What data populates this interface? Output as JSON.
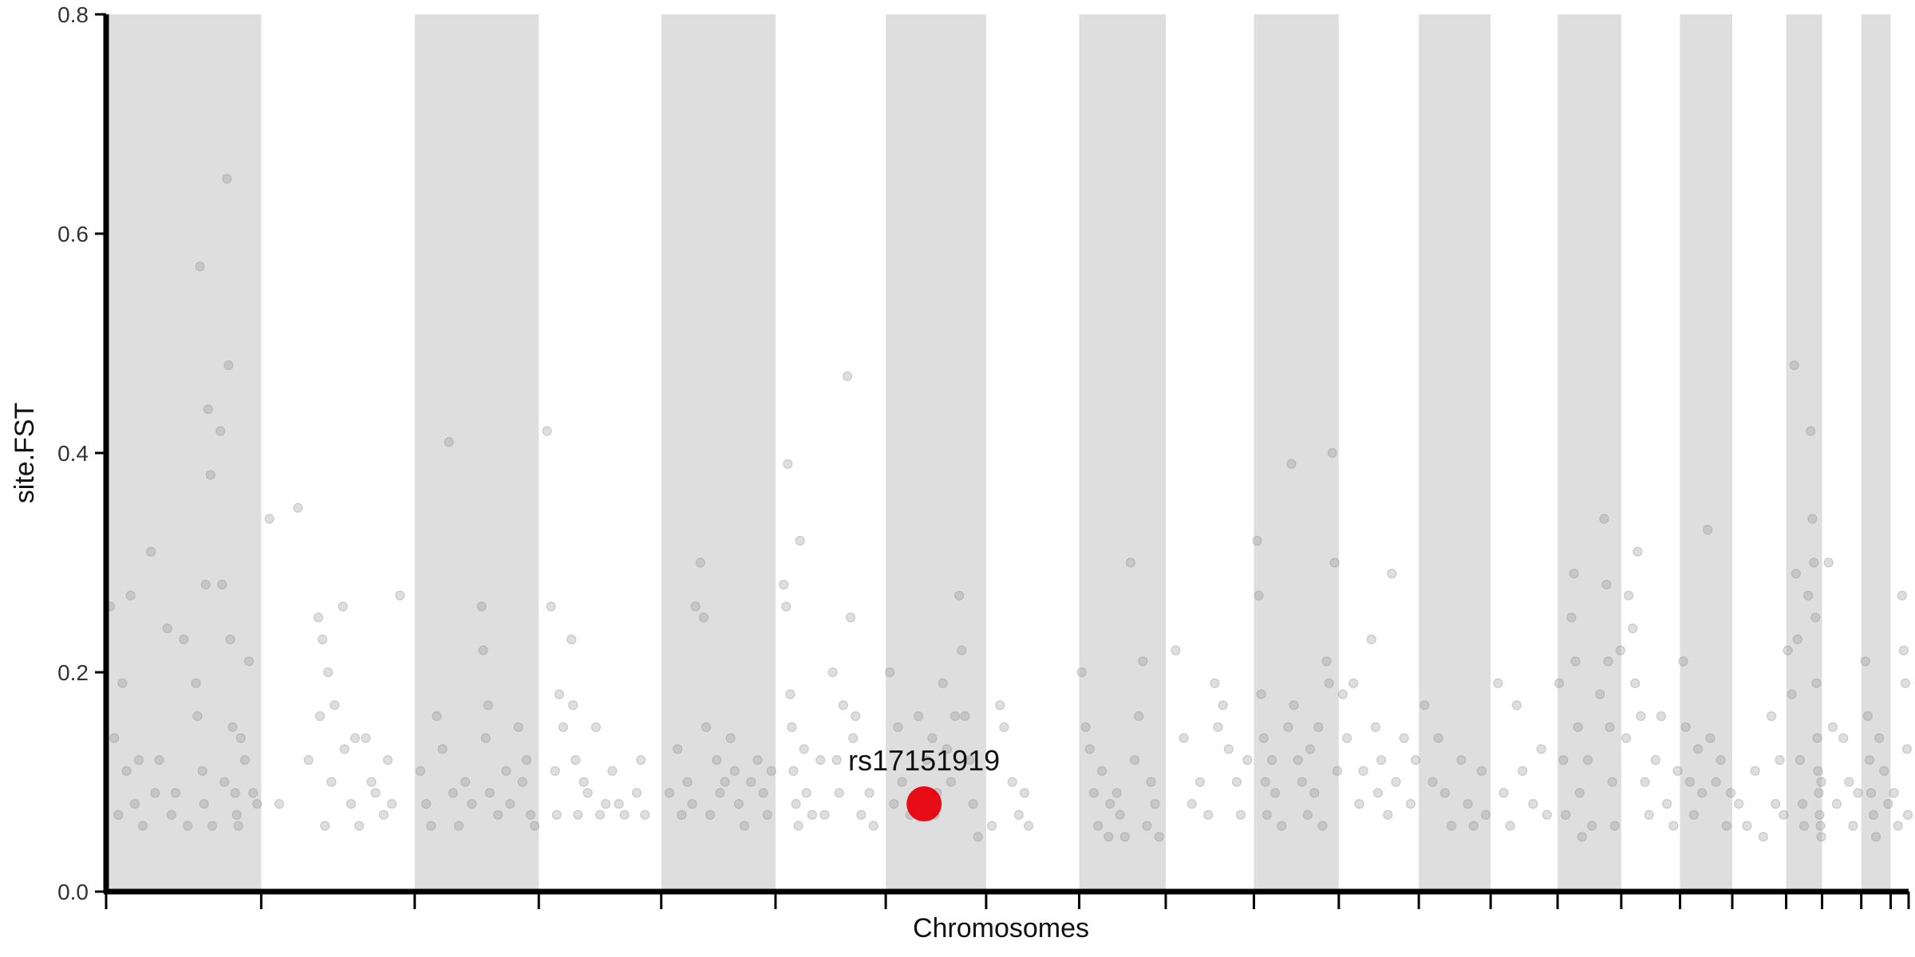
{
  "chart_data": {
    "type": "scatter",
    "ylabel": "site.FST",
    "xlabel": "Chromosomes",
    "ylim": [
      0,
      0.8
    ],
    "yticks": [
      0.0,
      0.2,
      0.4,
      0.6,
      0.8
    ],
    "ytick_labels": [
      "0.0",
      "0.2",
      "0.4",
      "0.6",
      "0.8"
    ],
    "chromosome_bands": [
      {
        "start": 0,
        "end": 190,
        "shaded": true
      },
      {
        "start": 190,
        "end": 378,
        "shaded": false
      },
      {
        "start": 378,
        "end": 530,
        "shaded": true
      },
      {
        "start": 530,
        "end": 680,
        "shaded": false
      },
      {
        "start": 680,
        "end": 820,
        "shaded": true
      },
      {
        "start": 820,
        "end": 955,
        "shaded": false
      },
      {
        "start": 955,
        "end": 1078,
        "shaded": true
      },
      {
        "start": 1078,
        "end": 1192,
        "shaded": false
      },
      {
        "start": 1192,
        "end": 1298,
        "shaded": true
      },
      {
        "start": 1298,
        "end": 1406,
        "shaded": false
      },
      {
        "start": 1406,
        "end": 1510,
        "shaded": true
      },
      {
        "start": 1510,
        "end": 1608,
        "shaded": false
      },
      {
        "start": 1608,
        "end": 1696,
        "shaded": true
      },
      {
        "start": 1696,
        "end": 1778,
        "shaded": false
      },
      {
        "start": 1778,
        "end": 1856,
        "shaded": true
      },
      {
        "start": 1856,
        "end": 1928,
        "shaded": false
      },
      {
        "start": 1928,
        "end": 1992,
        "shaded": true
      },
      {
        "start": 1992,
        "end": 2058,
        "shaded": false
      },
      {
        "start": 2058,
        "end": 2102,
        "shaded": true
      },
      {
        "start": 2102,
        "end": 2150,
        "shaded": false
      },
      {
        "start": 2150,
        "end": 2186,
        "shaded": true
      },
      {
        "start": 2186,
        "end": 2208,
        "shaded": false
      }
    ],
    "x_range": [
      0,
      2208
    ],
    "colors": {
      "band": "#dedede",
      "point": "#8a8a8a",
      "highlight": "#e8000b",
      "axis": "#000000"
    },
    "highlight": {
      "label": "rs17151919",
      "x": 1002,
      "y": 0.08
    },
    "points": [
      [
        5,
        0.26
      ],
      [
        10,
        0.14
      ],
      [
        15,
        0.07
      ],
      [
        20,
        0.19
      ],
      [
        25,
        0.11
      ],
      [
        30,
        0.27
      ],
      [
        35,
        0.08
      ],
      [
        40,
        0.12
      ],
      [
        45,
        0.06
      ],
      [
        55,
        0.31
      ],
      [
        60,
        0.09
      ],
      [
        65,
        0.12
      ],
      [
        75,
        0.24
      ],
      [
        80,
        0.07
      ],
      [
        85,
        0.09
      ],
      [
        95,
        0.23
      ],
      [
        100,
        0.06
      ],
      [
        110,
        0.19
      ],
      [
        112,
        0.16
      ],
      [
        115,
        0.57
      ],
      [
        118,
        0.11
      ],
      [
        120,
        0.08
      ],
      [
        122,
        0.28
      ],
      [
        125,
        0.44
      ],
      [
        128,
        0.38
      ],
      [
        130,
        0.06
      ],
      [
        140,
        0.42
      ],
      [
        142,
        0.28
      ],
      [
        145,
        0.1
      ],
      [
        148,
        0.65
      ],
      [
        150,
        0.48
      ],
      [
        152,
        0.23
      ],
      [
        155,
        0.15
      ],
      [
        158,
        0.09
      ],
      [
        160,
        0.07
      ],
      [
        162,
        0.06
      ],
      [
        165,
        0.14
      ],
      [
        170,
        0.12
      ],
      [
        175,
        0.21
      ],
      [
        180,
        0.09
      ],
      [
        185,
        0.08
      ],
      [
        200,
        0.34
      ],
      [
        212,
        0.08
      ],
      [
        235,
        0.35
      ],
      [
        248,
        0.12
      ],
      [
        260,
        0.25
      ],
      [
        262,
        0.16
      ],
      [
        265,
        0.23
      ],
      [
        268,
        0.06
      ],
      [
        272,
        0.2
      ],
      [
        276,
        0.1
      ],
      [
        280,
        0.17
      ],
      [
        290,
        0.26
      ],
      [
        292,
        0.13
      ],
      [
        300,
        0.08
      ],
      [
        305,
        0.14
      ],
      [
        310,
        0.06
      ],
      [
        318,
        0.14
      ],
      [
        325,
        0.1
      ],
      [
        330,
        0.09
      ],
      [
        340,
        0.07
      ],
      [
        345,
        0.12
      ],
      [
        350,
        0.08
      ],
      [
        360,
        0.27
      ],
      [
        385,
        0.11
      ],
      [
        392,
        0.08
      ],
      [
        398,
        0.06
      ],
      [
        405,
        0.16
      ],
      [
        412,
        0.13
      ],
      [
        420,
        0.41
      ],
      [
        425,
        0.09
      ],
      [
        432,
        0.06
      ],
      [
        440,
        0.1
      ],
      [
        448,
        0.08
      ],
      [
        460,
        0.26
      ],
      [
        462,
        0.22
      ],
      [
        465,
        0.14
      ],
      [
        468,
        0.17
      ],
      [
        470,
        0.09
      ],
      [
        480,
        0.07
      ],
      [
        490,
        0.11
      ],
      [
        495,
        0.08
      ],
      [
        505,
        0.15
      ],
      [
        510,
        0.1
      ],
      [
        515,
        0.12
      ],
      [
        520,
        0.07
      ],
      [
        525,
        0.06
      ],
      [
        540,
        0.42
      ],
      [
        545,
        0.26
      ],
      [
        550,
        0.11
      ],
      [
        552,
        0.07
      ],
      [
        555,
        0.18
      ],
      [
        560,
        0.15
      ],
      [
        570,
        0.23
      ],
      [
        572,
        0.17
      ],
      [
        575,
        0.12
      ],
      [
        578,
        0.07
      ],
      [
        585,
        0.1
      ],
      [
        590,
        0.09
      ],
      [
        600,
        0.15
      ],
      [
        605,
        0.07
      ],
      [
        612,
        0.08
      ],
      [
        620,
        0.11
      ],
      [
        628,
        0.08
      ],
      [
        635,
        0.07
      ],
      [
        650,
        0.09
      ],
      [
        655,
        0.12
      ],
      [
        660,
        0.07
      ],
      [
        690,
        0.09
      ],
      [
        700,
        0.13
      ],
      [
        705,
        0.07
      ],
      [
        712,
        0.1
      ],
      [
        718,
        0.08
      ],
      [
        722,
        0.26
      ],
      [
        728,
        0.3
      ],
      [
        732,
        0.25
      ],
      [
        735,
        0.15
      ],
      [
        740,
        0.07
      ],
      [
        748,
        0.12
      ],
      [
        752,
        0.09
      ],
      [
        758,
        0.1
      ],
      [
        765,
        0.14
      ],
      [
        770,
        0.11
      ],
      [
        775,
        0.08
      ],
      [
        782,
        0.06
      ],
      [
        790,
        0.1
      ],
      [
        798,
        0.12
      ],
      [
        805,
        0.09
      ],
      [
        810,
        0.07
      ],
      [
        815,
        0.11
      ],
      [
        830,
        0.28
      ],
      [
        833,
        0.26
      ],
      [
        835,
        0.39
      ],
      [
        838,
        0.18
      ],
      [
        840,
        0.15
      ],
      [
        842,
        0.11
      ],
      [
        845,
        0.08
      ],
      [
        848,
        0.06
      ],
      [
        850,
        0.32
      ],
      [
        855,
        0.13
      ],
      [
        858,
        0.09
      ],
      [
        865,
        0.07
      ],
      [
        875,
        0.12
      ],
      [
        880,
        0.07
      ],
      [
        890,
        0.2
      ],
      [
        895,
        0.12
      ],
      [
        898,
        0.09
      ],
      [
        903,
        0.17
      ],
      [
        908,
        0.47
      ],
      [
        912,
        0.25
      ],
      [
        915,
        0.14
      ],
      [
        918,
        0.16
      ],
      [
        925,
        0.07
      ],
      [
        935,
        0.09
      ],
      [
        940,
        0.06
      ],
      [
        960,
        0.2
      ],
      [
        965,
        0.08
      ],
      [
        970,
        0.15
      ],
      [
        975,
        0.1
      ],
      [
        985,
        0.07
      ],
      [
        995,
        0.16
      ],
      [
        1005,
        0.12
      ],
      [
        1012,
        0.14
      ],
      [
        1015,
        0.07
      ],
      [
        1018,
        0.09
      ],
      [
        1025,
        0.19
      ],
      [
        1030,
        0.13
      ],
      [
        1035,
        0.1
      ],
      [
        1040,
        0.16
      ],
      [
        1045,
        0.27
      ],
      [
        1048,
        0.22
      ],
      [
        1052,
        0.16
      ],
      [
        1058,
        0.12
      ],
      [
        1062,
        0.08
      ],
      [
        1068,
        0.05
      ],
      [
        1085,
        0.06
      ],
      [
        1095,
        0.17
      ],
      [
        1100,
        0.15
      ],
      [
        1110,
        0.1
      ],
      [
        1118,
        0.07
      ],
      [
        1125,
        0.09
      ],
      [
        1130,
        0.06
      ],
      [
        1195,
        0.2
      ],
      [
        1200,
        0.15
      ],
      [
        1205,
        0.13
      ],
      [
        1210,
        0.09
      ],
      [
        1215,
        0.06
      ],
      [
        1220,
        0.11
      ],
      [
        1228,
        0.05
      ],
      [
        1230,
        0.08
      ],
      [
        1238,
        0.09
      ],
      [
        1242,
        0.07
      ],
      [
        1248,
        0.05
      ],
      [
        1255,
        0.3
      ],
      [
        1260,
        0.12
      ],
      [
        1265,
        0.16
      ],
      [
        1270,
        0.21
      ],
      [
        1275,
        0.06
      ],
      [
        1280,
        0.1
      ],
      [
        1285,
        0.08
      ],
      [
        1290,
        0.05
      ],
      [
        1310,
        0.22
      ],
      [
        1320,
        0.14
      ],
      [
        1330,
        0.08
      ],
      [
        1340,
        0.1
      ],
      [
        1350,
        0.07
      ],
      [
        1358,
        0.19
      ],
      [
        1362,
        0.15
      ],
      [
        1368,
        0.17
      ],
      [
        1375,
        0.13
      ],
      [
        1385,
        0.1
      ],
      [
        1390,
        0.07
      ],
      [
        1398,
        0.12
      ],
      [
        1410,
        0.32
      ],
      [
        1412,
        0.27
      ],
      [
        1415,
        0.18
      ],
      [
        1418,
        0.14
      ],
      [
        1420,
        0.1
      ],
      [
        1422,
        0.07
      ],
      [
        1428,
        0.12
      ],
      [
        1432,
        0.09
      ],
      [
        1440,
        0.06
      ],
      [
        1448,
        0.15
      ],
      [
        1452,
        0.39
      ],
      [
        1455,
        0.17
      ],
      [
        1460,
        0.12
      ],
      [
        1465,
        0.1
      ],
      [
        1472,
        0.07
      ],
      [
        1475,
        0.13
      ],
      [
        1480,
        0.09
      ],
      [
        1485,
        0.15
      ],
      [
        1490,
        0.06
      ],
      [
        1495,
        0.21
      ],
      [
        1498,
        0.19
      ],
      [
        1502,
        0.4
      ],
      [
        1505,
        0.3
      ],
      [
        1508,
        0.11
      ],
      [
        1515,
        0.18
      ],
      [
        1520,
        0.14
      ],
      [
        1528,
        0.19
      ],
      [
        1535,
        0.08
      ],
      [
        1540,
        0.11
      ],
      [
        1550,
        0.23
      ],
      [
        1555,
        0.15
      ],
      [
        1558,
        0.09
      ],
      [
        1562,
        0.12
      ],
      [
        1570,
        0.07
      ],
      [
        1575,
        0.29
      ],
      [
        1580,
        0.1
      ],
      [
        1590,
        0.14
      ],
      [
        1598,
        0.08
      ],
      [
        1604,
        0.12
      ],
      [
        1615,
        0.17
      ],
      [
        1625,
        0.1
      ],
      [
        1632,
        0.14
      ],
      [
        1640,
        0.09
      ],
      [
        1648,
        0.06
      ],
      [
        1660,
        0.12
      ],
      [
        1668,
        0.08
      ],
      [
        1675,
        0.06
      ],
      [
        1685,
        0.11
      ],
      [
        1690,
        0.07
      ],
      [
        1705,
        0.19
      ],
      [
        1712,
        0.09
      ],
      [
        1720,
        0.06
      ],
      [
        1728,
        0.17
      ],
      [
        1735,
        0.11
      ],
      [
        1748,
        0.08
      ],
      [
        1758,
        0.13
      ],
      [
        1765,
        0.07
      ],
      [
        1780,
        0.19
      ],
      [
        1785,
        0.12
      ],
      [
        1788,
        0.07
      ],
      [
        1795,
        0.25
      ],
      [
        1798,
        0.29
      ],
      [
        1800,
        0.21
      ],
      [
        1803,
        0.15
      ],
      [
        1805,
        0.09
      ],
      [
        1808,
        0.05
      ],
      [
        1815,
        0.12
      ],
      [
        1820,
        0.06
      ],
      [
        1830,
        0.18
      ],
      [
        1835,
        0.34
      ],
      [
        1838,
        0.28
      ],
      [
        1840,
        0.21
      ],
      [
        1842,
        0.15
      ],
      [
        1845,
        0.1
      ],
      [
        1848,
        0.06
      ],
      [
        1855,
        0.22
      ],
      [
        1862,
        0.14
      ],
      [
        1865,
        0.27
      ],
      [
        1870,
        0.24
      ],
      [
        1873,
        0.19
      ],
      [
        1876,
        0.31
      ],
      [
        1880,
        0.16
      ],
      [
        1885,
        0.1
      ],
      [
        1890,
        0.07
      ],
      [
        1898,
        0.12
      ],
      [
        1905,
        0.16
      ],
      [
        1912,
        0.08
      ],
      [
        1920,
        0.06
      ],
      [
        1925,
        0.11
      ],
      [
        1932,
        0.21
      ],
      [
        1935,
        0.15
      ],
      [
        1940,
        0.1
      ],
      [
        1945,
        0.07
      ],
      [
        1950,
        0.13
      ],
      [
        1955,
        0.09
      ],
      [
        1962,
        0.33
      ],
      [
        1965,
        0.14
      ],
      [
        1972,
        0.1
      ],
      [
        1978,
        0.12
      ],
      [
        1985,
        0.06
      ],
      [
        1990,
        0.09
      ],
      [
        2000,
        0.08
      ],
      [
        2010,
        0.06
      ],
      [
        2020,
        0.11
      ],
      [
        2030,
        0.05
      ],
      [
        2040,
        0.16
      ],
      [
        2045,
        0.08
      ],
      [
        2050,
        0.12
      ],
      [
        2055,
        0.07
      ],
      [
        2060,
        0.22
      ],
      [
        2065,
        0.18
      ],
      [
        2068,
        0.48
      ],
      [
        2070,
        0.29
      ],
      [
        2072,
        0.23
      ],
      [
        2075,
        0.12
      ],
      [
        2078,
        0.08
      ],
      [
        2080,
        0.06
      ],
      [
        2085,
        0.27
      ],
      [
        2088,
        0.42
      ],
      [
        2090,
        0.34
      ],
      [
        2092,
        0.3
      ],
      [
        2094,
        0.25
      ],
      [
        2095,
        0.19
      ],
      [
        2096,
        0.14
      ],
      [
        2097,
        0.11
      ],
      [
        2098,
        0.09
      ],
      [
        2099,
        0.07
      ],
      [
        2100,
        0.06
      ],
      [
        2101,
        0.1
      ],
      [
        2101,
        0.05
      ],
      [
        2110,
        0.3
      ],
      [
        2115,
        0.15
      ],
      [
        2120,
        0.08
      ],
      [
        2128,
        0.14
      ],
      [
        2135,
        0.1
      ],
      [
        2140,
        0.06
      ],
      [
        2146,
        0.09
      ],
      [
        2155,
        0.21
      ],
      [
        2158,
        0.16
      ],
      [
        2160,
        0.12
      ],
      [
        2162,
        0.09
      ],
      [
        2165,
        0.07
      ],
      [
        2168,
        0.05
      ],
      [
        2172,
        0.14
      ],
      [
        2178,
        0.11
      ],
      [
        2183,
        0.08
      ],
      [
        2190,
        0.09
      ],
      [
        2195,
        0.06
      ],
      [
        2200,
        0.27
      ],
      [
        2202,
        0.22
      ],
      [
        2204,
        0.19
      ],
      [
        2206,
        0.13
      ],
      [
        2207,
        0.07
      ]
    ]
  }
}
